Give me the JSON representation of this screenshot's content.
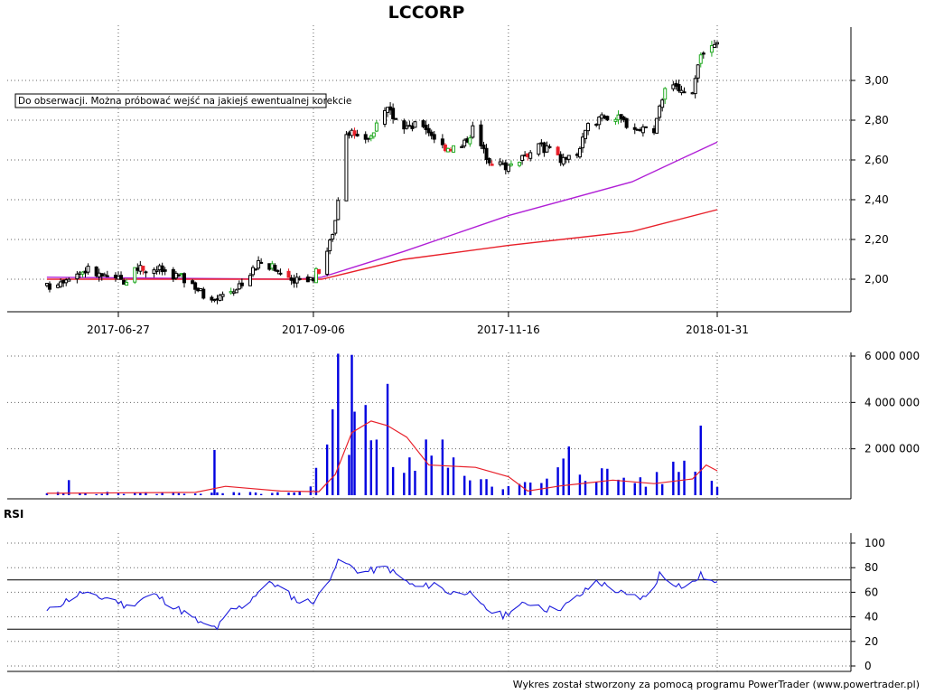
{
  "chart_data": [
    {
      "type": "candlestick",
      "title": "LCCORP",
      "annotation": "Do obserwacji. Można próbować wejść na jakiejś ewentualnej korekcie",
      "y_ticks": [
        "2,00",
        "2,20",
        "2,40",
        "2,60",
        "2,80",
        "3,00"
      ],
      "ylim": [
        1.85,
        3.22
      ],
      "x_ticks": [
        {
          "date": "2017-06-27",
          "label": "2017-06-27"
        },
        {
          "date": "2017-09-06",
          "label": "2017-09-06"
        },
        {
          "date": "2017-11-16",
          "label": "2017-11-16"
        },
        {
          "date": "2018-01-31",
          "label": "2018-01-31"
        }
      ],
      "x_range": [
        "2017-05-31",
        "2018-02-16"
      ],
      "grid": true,
      "price_path": [
        [
          "2017-06-01",
          1.96
        ],
        [
          "2017-06-09",
          2.02
        ],
        [
          "2017-06-16",
          2.05
        ],
        [
          "2017-06-23",
          2.0
        ],
        [
          "2017-06-30",
          2.0
        ],
        [
          "2017-07-05",
          2.06
        ],
        [
          "2017-07-12",
          2.05
        ],
        [
          "2017-07-18",
          2.02
        ],
        [
          "2017-07-24",
          1.98
        ],
        [
          "2017-07-28",
          1.92
        ],
        [
          "2017-08-03",
          1.92
        ],
        [
          "2017-08-09",
          1.96
        ],
        [
          "2017-08-14",
          2.03
        ],
        [
          "2017-08-18",
          2.09
        ],
        [
          "2017-08-24",
          2.04
        ],
        [
          "2017-08-30",
          2.0
        ],
        [
          "2017-09-05",
          2.0
        ],
        [
          "2017-09-08",
          2.05
        ],
        [
          "2017-09-12",
          2.18
        ],
        [
          "2017-09-14",
          2.3
        ],
        [
          "2017-09-18",
          2.75
        ],
        [
          "2017-09-22",
          2.7
        ],
        [
          "2017-09-27",
          2.72
        ],
        [
          "2017-10-03",
          2.85
        ],
        [
          "2017-10-09",
          2.76
        ],
        [
          "2017-10-16",
          2.78
        ],
        [
          "2017-10-23",
          2.67
        ],
        [
          "2017-10-30",
          2.66
        ],
        [
          "2017-11-03",
          2.76
        ],
        [
          "2017-11-07",
          2.64
        ],
        [
          "2017-11-11",
          2.58
        ],
        [
          "2017-11-16",
          2.57
        ],
        [
          "2017-11-22",
          2.63
        ],
        [
          "2017-11-28",
          2.67
        ],
        [
          "2017-12-05",
          2.6
        ],
        [
          "2017-12-11",
          2.63
        ],
        [
          "2017-12-15",
          2.76
        ],
        [
          "2017-12-20",
          2.83
        ],
        [
          "2017-12-27",
          2.8
        ],
        [
          "2018-01-03",
          2.75
        ],
        [
          "2018-01-08",
          2.73
        ],
        [
          "2018-01-12",
          2.98
        ],
        [
          "2018-01-17",
          2.95
        ],
        [
          "2018-01-22",
          2.92
        ],
        [
          "2018-01-25",
          3.12
        ],
        [
          "2018-01-31",
          3.18
        ]
      ],
      "series": [
        {
          "name": "",
          "color": "#b01fd6",
          "points": [
            [
              "2017-06-01",
              2.01
            ],
            [
              "2017-08-31",
              2.0
            ],
            [
              "2017-09-09",
              2.01
            ],
            [
              "2017-10-09",
              2.14
            ],
            [
              "2017-11-16",
              2.32
            ],
            [
              "2017-12-31",
              2.49
            ],
            [
              "2018-01-31",
              2.69
            ]
          ]
        },
        {
          "name": "",
          "color": "#e8202a",
          "points": [
            [
              "2017-06-01",
              2.0
            ],
            [
              "2017-09-09",
              2.0
            ],
            [
              "2017-10-09",
              2.1
            ],
            [
              "2017-11-16",
              2.17
            ],
            [
              "2017-12-31",
              2.24
            ],
            [
              "2018-01-31",
              2.35
            ]
          ]
        }
      ],
      "colors": {
        "up": "#22aa22",
        "down": "#e8202a",
        "neutral": "#000000"
      }
    },
    {
      "type": "bar",
      "y_ticks": [
        "2 000 000",
        "4 000 000",
        "6 000 000"
      ],
      "ylim": [
        0,
        6200000
      ],
      "volume_envelope": [
        [
          "2017-06-01",
          120000
        ],
        [
          "2017-08-31",
          110000
        ],
        [
          "2017-09-05",
          350000
        ],
        [
          "2017-09-12",
          2600000
        ],
        [
          "2017-09-15",
          6100000
        ],
        [
          "2017-09-20",
          3000000
        ],
        [
          "2017-09-26",
          4900000
        ],
        [
          "2017-10-02",
          2000000
        ],
        [
          "2017-10-09",
          1100000
        ],
        [
          "2017-10-16",
          2300000
        ],
        [
          "2017-10-23",
          1400000
        ],
        [
          "2017-11-01",
          1300000
        ],
        [
          "2017-11-08",
          1000000
        ],
        [
          "2017-11-16",
          400000
        ],
        [
          "2017-11-30",
          700000
        ],
        [
          "2017-12-08",
          1700000
        ],
        [
          "2017-12-15",
          1300000
        ],
        [
          "2017-12-27",
          900000
        ],
        [
          "2018-01-10",
          800000
        ],
        [
          "2018-01-22",
          2100000
        ],
        [
          "2018-01-26",
          2900000
        ],
        [
          "2018-01-31",
          500000
        ]
      ],
      "spikes": [
        [
          "2017-06-09",
          650000
        ],
        [
          "2017-07-16",
          1800000
        ],
        [
          "2017-08-01",
          1950000
        ],
        [
          "2017-09-13",
          3700000
        ],
        [
          "2017-09-15",
          6100000
        ],
        [
          "2017-09-20",
          6050000
        ],
        [
          "2017-10-01",
          4900000
        ],
        [
          "2017-10-03",
          4800000
        ],
        [
          "2017-10-23",
          2400000
        ],
        [
          "2017-11-11",
          2400000
        ],
        [
          "2017-12-08",
          2100000
        ],
        [
          "2017-12-24",
          2300000
        ],
        [
          "2018-01-25",
          3000000
        ],
        [
          "2018-01-28",
          2700000
        ]
      ],
      "series": [
        {
          "name": "",
          "color": "#e8202a",
          "points": [
            [
              "2017-06-01",
              80000
            ],
            [
              "2017-07-25",
              120000
            ],
            [
              "2017-08-05",
              380000
            ],
            [
              "2017-08-25",
              180000
            ],
            [
              "2017-09-08",
              150000
            ],
            [
              "2017-09-14",
              900000
            ],
            [
              "2017-09-20",
              2700000
            ],
            [
              "2017-09-27",
              3200000
            ],
            [
              "2017-10-03",
              3000000
            ],
            [
              "2017-10-10",
              2500000
            ],
            [
              "2017-10-18",
              1300000
            ],
            [
              "2017-11-04",
              1200000
            ],
            [
              "2017-11-16",
              800000
            ],
            [
              "2017-11-23",
              180000
            ],
            [
              "2017-12-05",
              400000
            ],
            [
              "2017-12-24",
              650000
            ],
            [
              "2018-01-08",
              500000
            ],
            [
              "2018-01-22",
              700000
            ],
            [
              "2018-01-27",
              1300000
            ],
            [
              "2018-01-31",
              1050000
            ]
          ]
        }
      ],
      "colors": {
        "bar": "#0000e0",
        "ma": "#e8202a"
      }
    },
    {
      "type": "line",
      "panel_label": "RSI",
      "y_ticks": [
        "0",
        "20",
        "40",
        "60",
        "80",
        "100"
      ],
      "ylim": [
        0,
        100
      ],
      "reference_lines": [
        70,
        30
      ],
      "series": [
        {
          "name": "",
          "color": "#1a1adc",
          "points": [
            [
              "2017-06-01",
              44
            ],
            [
              "2017-06-07",
              52
            ],
            [
              "2017-06-14",
              60
            ],
            [
              "2017-06-19",
              55
            ],
            [
              "2017-06-24",
              56
            ],
            [
              "2017-06-30",
              48
            ],
            [
              "2017-07-06",
              55
            ],
            [
              "2017-07-10",
              58
            ],
            [
              "2017-07-17",
              49
            ],
            [
              "2017-07-22",
              42
            ],
            [
              "2017-07-28",
              33
            ],
            [
              "2017-08-02",
              31
            ],
            [
              "2017-08-07",
              45
            ],
            [
              "2017-08-12",
              49
            ],
            [
              "2017-08-17",
              61
            ],
            [
              "2017-08-22",
              68
            ],
            [
              "2017-08-27",
              60
            ],
            [
              "2017-09-01",
              52
            ],
            [
              "2017-09-06",
              53
            ],
            [
              "2017-09-10",
              61
            ],
            [
              "2017-09-13",
              78
            ],
            [
              "2017-09-16",
              87
            ],
            [
              "2017-09-20",
              80
            ],
            [
              "2017-09-24",
              76
            ],
            [
              "2017-09-28",
              78
            ],
            [
              "2017-10-03",
              80
            ],
            [
              "2017-10-08",
              71
            ],
            [
              "2017-10-14",
              63
            ],
            [
              "2017-10-20",
              67
            ],
            [
              "2017-10-26",
              59
            ],
            [
              "2017-11-01",
              61
            ],
            [
              "2017-11-05",
              50
            ],
            [
              "2017-11-10",
              44
            ],
            [
              "2017-11-14",
              41
            ],
            [
              "2017-11-19",
              48
            ],
            [
              "2017-11-25",
              52
            ],
            [
              "2017-11-30",
              46
            ],
            [
              "2017-12-06",
              48
            ],
            [
              "2017-12-13",
              59
            ],
            [
              "2017-12-18",
              69
            ],
            [
              "2017-12-23",
              64
            ],
            [
              "2017-12-29",
              57
            ],
            [
              "2018-01-06",
              55
            ],
            [
              "2018-01-10",
              75
            ],
            [
              "2018-01-15",
              68
            ],
            [
              "2018-01-20",
              63
            ],
            [
              "2018-01-25",
              74
            ],
            [
              "2018-01-31",
              66
            ]
          ]
        }
      ]
    }
  ],
  "footer": "Wykres został stworzony za pomocą programu PowerTrader (www.powertrader.pl)"
}
